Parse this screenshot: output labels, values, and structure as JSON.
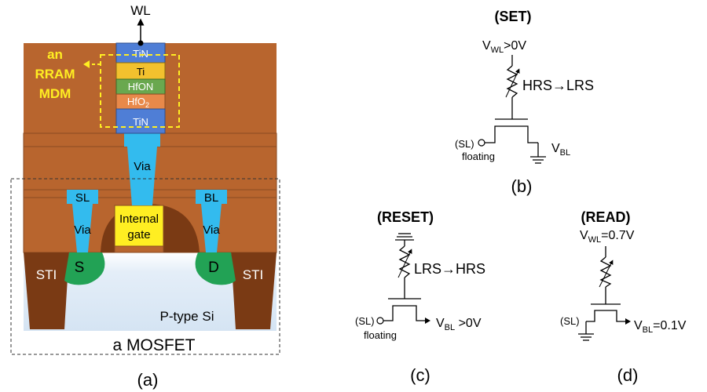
{
  "panel_a": {
    "wl_label": "WL",
    "rram_label": [
      "an",
      "RRAM",
      "MDM"
    ],
    "layers": [
      "TiN",
      "Ti",
      "HfON",
      "HfO",
      "TiN"
    ],
    "layers_subscript": [
      "",
      "",
      "",
      "2",
      ""
    ],
    "via_top": "Via",
    "via_left": "Via",
    "via_right": "Via",
    "sl_label": "SL",
    "bl_label": "BL",
    "internal_gate": [
      "Internal",
      "gate"
    ],
    "sti_left": "STI",
    "sti_right": "STI",
    "source": "S",
    "drain": "D",
    "substrate": "P-type Si",
    "mosfet_label": "a MOSFET",
    "caption": "(a)"
  },
  "panel_b": {
    "title": "(SET)",
    "wl_v": "V",
    "wl_sub": "WL",
    "wl_val": ">0V",
    "transition": "HRS→LRS",
    "sl": "(SL)",
    "floating": "floating",
    "bl_v": "V",
    "bl_sub": "BL",
    "bl_val": "",
    "caption": "(b)"
  },
  "panel_c": {
    "title": "(RESET)",
    "transition": "LRS→HRS",
    "sl": "(SL)",
    "floating": "floating",
    "bl_v": "V",
    "bl_sub": "BL",
    "bl_val": " >0V",
    "caption": "(c)"
  },
  "panel_d": {
    "title": "(READ)",
    "wl_v": "V",
    "wl_sub": "WL",
    "wl_val": "=0.7V",
    "sl": "(SL)",
    "bl_v": "V",
    "bl_sub": "BL",
    "bl_val": "=0.1V",
    "caption": "(d)"
  },
  "colors": {
    "dielectric": "#b8652e",
    "dielectric_edge": "#8a4a22",
    "via": "#33bbee",
    "tin": "#4f7ed6",
    "ti": "#f2c12e",
    "hfon": "#6aa84f",
    "hfo2": "#e8894a",
    "gate": "#ffee22",
    "gate_dome": "#7a3a14",
    "sti": "#7a3a14",
    "diffusion": "#22a255",
    "substrate": "#dce9f6",
    "rram_box": "#ffee22",
    "rram_text": "#ffee22"
  }
}
